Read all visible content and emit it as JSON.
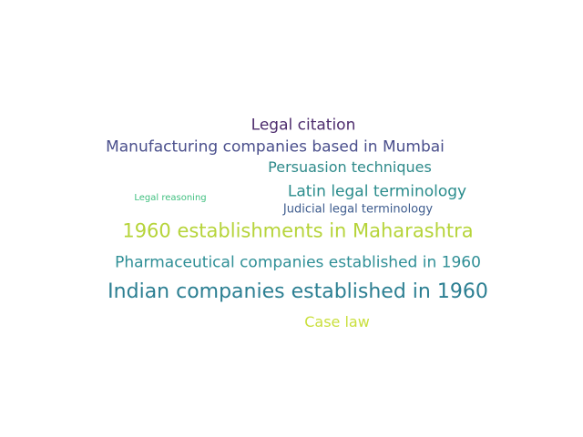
{
  "word_cloud": {
    "words": [
      {
        "text": "Legal citation",
        "color": "#4e2d6e"
      },
      {
        "text": "Manufacturing companies based in Mumbai",
        "color": "#4a4f8c"
      },
      {
        "text": "Persuasion techniques",
        "color": "#2e8a8a"
      },
      {
        "text": "Legal reasoning",
        "color": "#3fbf7f"
      },
      {
        "text": "Latin legal terminology",
        "color": "#2a8c8c"
      },
      {
        "text": "Judicial legal terminology",
        "color": "#3e5c8e"
      },
      {
        "text": "1960 establishments in Maharashtra",
        "color": "#b6d43a"
      },
      {
        "text": "Pharmaceutical companies established in 1960",
        "color": "#2f8f96"
      },
      {
        "text": "Indian companies established in 1960",
        "color": "#2c7f92"
      },
      {
        "text": "Case law",
        "color": "#c9df3c"
      }
    ]
  }
}
